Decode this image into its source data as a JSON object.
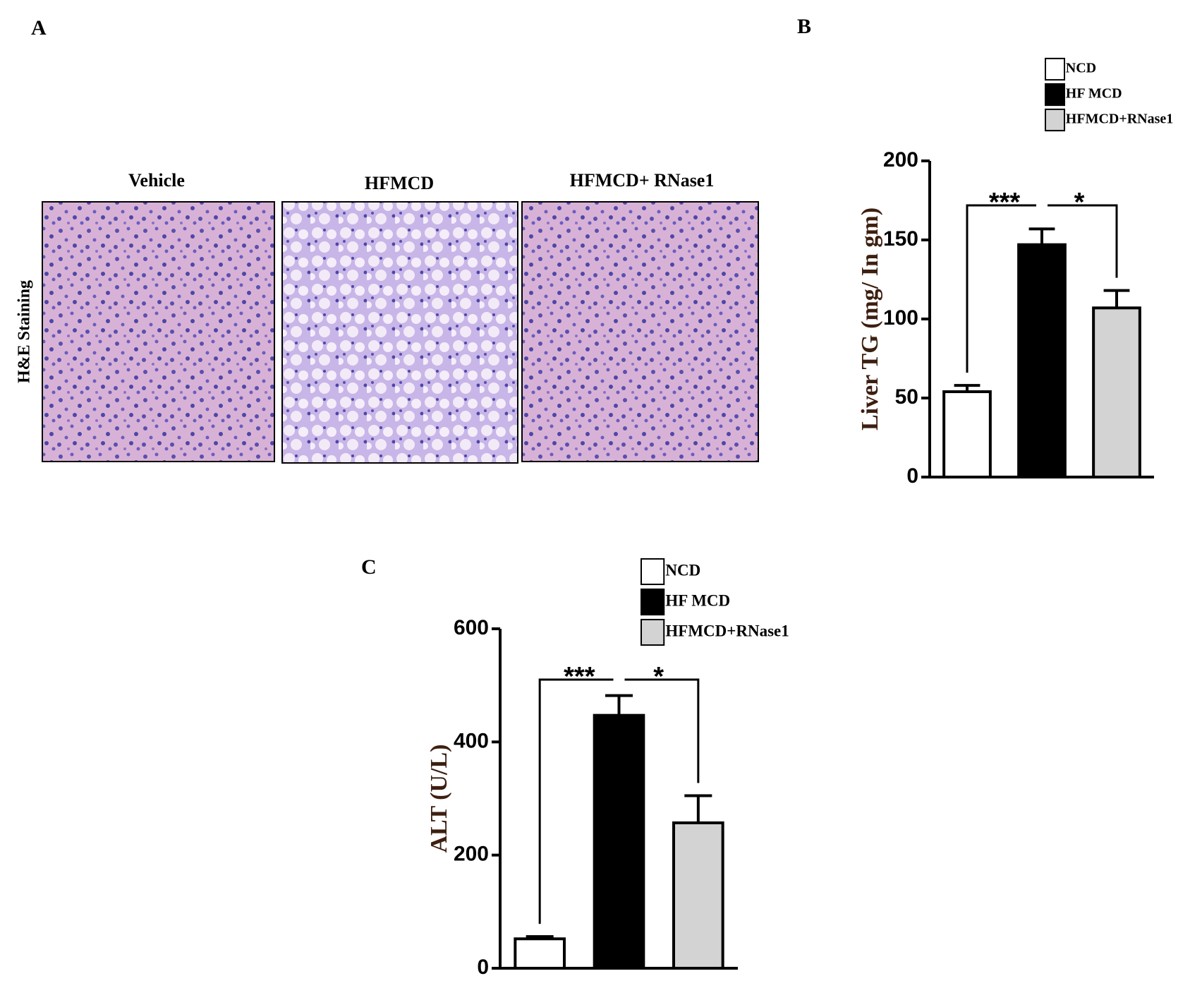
{
  "figure": {
    "panel_labels": [
      "A",
      "B",
      "C"
    ],
    "stain_label": "H&E Staining",
    "image_titles": [
      "Vehicle",
      "HFMCD",
      "HFMCD+ RNase1"
    ]
  },
  "chart_data": [
    {
      "type": "bar",
      "categories": [
        null
      ],
      "ylabel": "Liver TG (mg/ In gm)",
      "ylabel_color": "#3d1f10",
      "ylim": [
        0,
        200
      ],
      "yticks": [
        0,
        50,
        100,
        150,
        200
      ],
      "series": [
        {
          "name": "NCD",
          "color": "#ffffff",
          "values": [
            54
          ],
          "errors": [
            4
          ]
        },
        {
          "name": "HF MCD",
          "color": "#000000",
          "values": [
            147
          ],
          "errors": [
            10
          ]
        },
        {
          "name": "HFMCD+RNase1",
          "color": "#d3d3d3",
          "values": [
            107
          ],
          "errors": [
            11
          ]
        }
      ],
      "annotations": [
        "***",
        "*"
      ]
    },
    {
      "type": "bar",
      "categories": [
        null
      ],
      "ylabel": "ALT (U/L)",
      "ylabel_color": "#3d1f10",
      "ylim": [
        0,
        600
      ],
      "yticks": [
        0,
        200,
        400,
        600
      ],
      "series": [
        {
          "name": "NCD",
          "color": "#ffffff",
          "values": [
            52
          ],
          "errors": [
            4
          ]
        },
        {
          "name": "HF MCD",
          "color": "#000000",
          "values": [
            447
          ],
          "errors": [
            35
          ]
        },
        {
          "name": "HFMCD+RNase1",
          "color": "#d3d3d3",
          "values": [
            257
          ],
          "errors": [
            48
          ]
        }
      ],
      "annotations": [
        "***",
        "*"
      ]
    }
  ]
}
